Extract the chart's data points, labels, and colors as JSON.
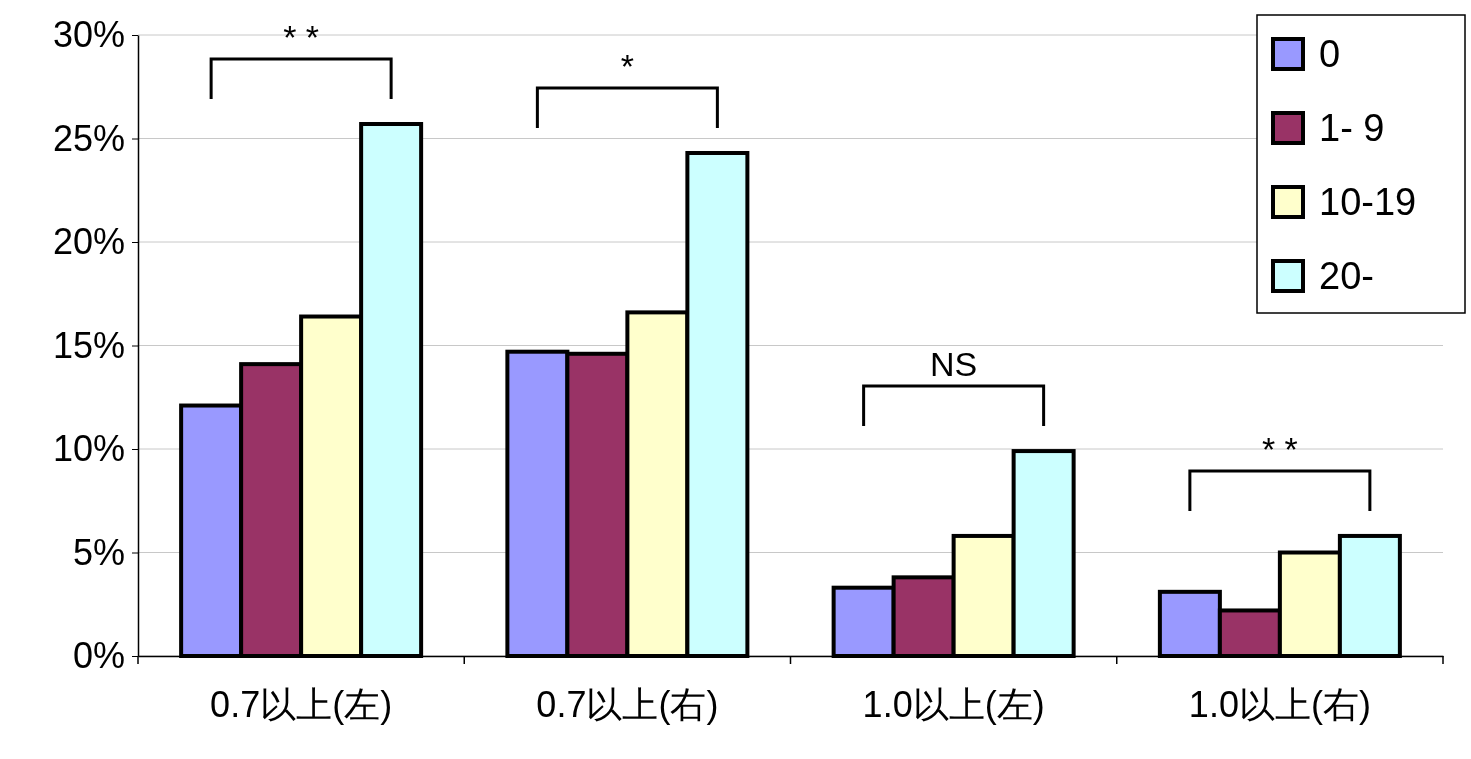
{
  "chart_data": {
    "type": "bar",
    "categories": [
      "0.7以上(左)",
      "0.7以上(右)",
      "1.0以上(左)",
      "1.0以上(右)"
    ],
    "series": [
      {
        "name": "0",
        "color": "#9999ff",
        "values": [
          12.1,
          14.7,
          3.3,
          3.1
        ]
      },
      {
        "name": "1- 9",
        "color": "#993366",
        "values": [
          14.1,
          14.6,
          3.8,
          2.2
        ]
      },
      {
        "name": "10-19",
        "color": "#ffffcc",
        "values": [
          16.4,
          16.6,
          5.8,
          5.0
        ]
      },
      {
        "name": "20-",
        "color": "#ccffff",
        "values": [
          25.7,
          24.3,
          9.9,
          5.8
        ]
      }
    ],
    "ylim": [
      0,
      30
    ],
    "yticks": [
      {
        "value": 0,
        "label": "0%"
      },
      {
        "value": 5,
        "label": "5%"
      },
      {
        "value": 10,
        "label": "10%"
      },
      {
        "value": 15,
        "label": "15%"
      },
      {
        "value": 20,
        "label": "20%"
      },
      {
        "value": 25,
        "label": "25%"
      },
      {
        "value": 30,
        "label": "30%"
      }
    ],
    "grid": "y",
    "legend": "top right",
    "annotations": [
      "* *",
      "*",
      "NS",
      "* *"
    ]
  }
}
